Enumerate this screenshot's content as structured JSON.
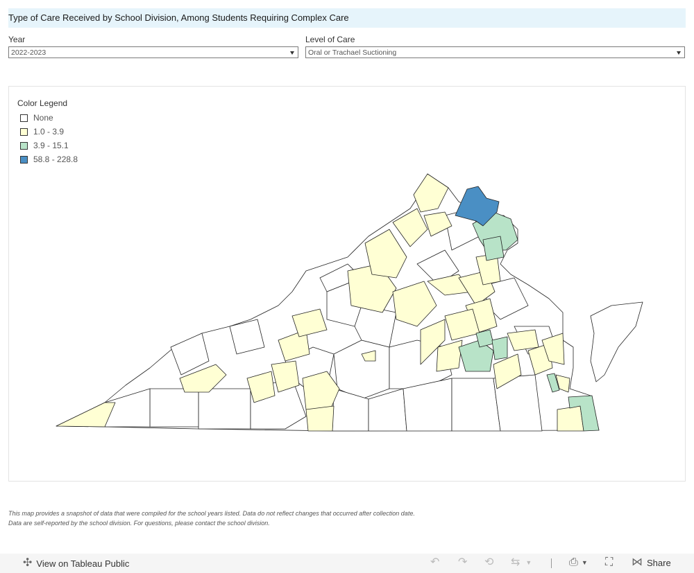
{
  "title": "Type of Care Received by School Division, Among Students Requiring Complex Care",
  "filters": {
    "year": {
      "label": "Year",
      "value": "2022-2023"
    },
    "level": {
      "label": "Level of Care",
      "value": "Oral or Trachael Suctioning"
    }
  },
  "legend": {
    "title": "Color Legend",
    "items": [
      {
        "label": "None",
        "color": "#ffffff"
      },
      {
        "label": "1.0 - 3.9",
        "color": "#ffffd4"
      },
      {
        "label": "3.9 - 15.1",
        "color": "#b8e3c8"
      },
      {
        "label": "58.8 - 228.8",
        "color": "#4a8fc4"
      }
    ]
  },
  "footnote": {
    "line1": "This map provides a snapshot of data that were compiled for the  school years listed. Data do not reflect changes that occurred after collection date.",
    "line2": "Data are self-reported by the school division. For questions, please contact the school division."
  },
  "toolbar": {
    "view_label": "View on Tableau Public",
    "share_label": "Share"
  },
  "icons": {
    "view": "tableau-icon",
    "undo": "undo-icon",
    "redo": "redo-icon",
    "revert": "revert-icon",
    "refresh": "refresh-icon",
    "download": "download-icon",
    "fullscreen": "fullscreen-icon",
    "share": "share-icon"
  }
}
